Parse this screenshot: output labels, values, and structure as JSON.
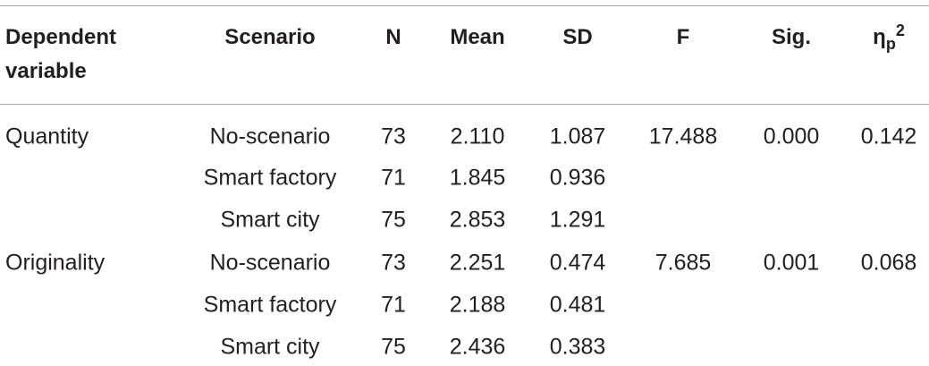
{
  "table": {
    "header": [
      "Dependent variable",
      "Scenario",
      "N",
      "Mean",
      "SD",
      "F",
      "Sig.",
      {
        "symbol": "η",
        "sub": "p",
        "sup": "2"
      }
    ],
    "groups": [
      {
        "variable": "Quantity",
        "F": "17.488",
        "sig": "0.000",
        "eta": "0.142",
        "rows": [
          {
            "scenario": "No-scenario",
            "n": "73",
            "mean": "2.110",
            "sd": "1.087"
          },
          {
            "scenario": "Smart factory",
            "n": "71",
            "mean": "1.845",
            "sd": "0.936"
          },
          {
            "scenario": "Smart city",
            "n": "75",
            "mean": "2.853",
            "sd": "1.291"
          }
        ]
      },
      {
        "variable": "Originality",
        "F": "7.685",
        "sig": "0.001",
        "eta": "0.068",
        "rows": [
          {
            "scenario": "No-scenario",
            "n": "73",
            "mean": "2.251",
            "sd": "0.474"
          },
          {
            "scenario": "Smart factory",
            "n": "71",
            "mean": "2.188",
            "sd": "0.481"
          },
          {
            "scenario": "Smart city",
            "n": "75",
            "mean": "2.436",
            "sd": "0.383"
          }
        ]
      }
    ]
  }
}
